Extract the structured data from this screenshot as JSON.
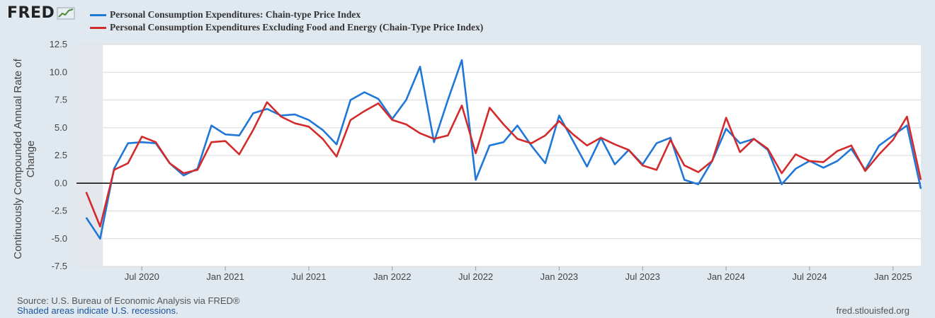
{
  "brand": {
    "logo_text": "FRED",
    "logo_graph_icon": "line-graph-icon"
  },
  "legend": [
    {
      "label": "Personal Consumption Expenditures: Chain-type Price Index",
      "color": "#1f77d8"
    },
    {
      "label": "Personal Consumption Expenditures Excluding Food and Energy (Chain-Type Price Index)",
      "color": "#d32b2b"
    }
  ],
  "footer": {
    "source": "Source: U.S. Bureau of Economic Analysis via FRED®",
    "recession_note": "Shaded areas indicate U.S. recessions.",
    "url": "fred.stlouisfed.org"
  },
  "chart_data": {
    "type": "line",
    "ylabel": "Continuously Compounded Annual Rate of Change",
    "ylim": [
      -7.5,
      12.5
    ],
    "y_ticks": [
      "12.5",
      "10.0",
      "7.5",
      "5.0",
      "2.5",
      "0.0",
      "-2.5",
      "-5.0",
      "-7.5"
    ],
    "x_ticks": [
      "Jul 2020",
      "Jan 2021",
      "Jul 2021",
      "Jan 2022",
      "Jul 2022",
      "Jan 2023",
      "Jul 2023",
      "Jan 2024",
      "Jul 2024",
      "Jan 2025"
    ],
    "x_start": "2020-03",
    "recession": {
      "start": "2020-03",
      "end": "2020-04"
    },
    "grid": true,
    "zero_line": true,
    "x": [
      "2020-03",
      "2020-04",
      "2020-05",
      "2020-06",
      "2020-07",
      "2020-08",
      "2020-09",
      "2020-10",
      "2020-11",
      "2020-12",
      "2021-01",
      "2021-02",
      "2021-03",
      "2021-04",
      "2021-05",
      "2021-06",
      "2021-07",
      "2021-08",
      "2021-09",
      "2021-10",
      "2021-11",
      "2021-12",
      "2022-01",
      "2022-02",
      "2022-03",
      "2022-04",
      "2022-05",
      "2022-06",
      "2022-07",
      "2022-08",
      "2022-09",
      "2022-10",
      "2022-11",
      "2022-12",
      "2023-01",
      "2023-02",
      "2023-03",
      "2023-04",
      "2023-05",
      "2023-06",
      "2023-07",
      "2023-08",
      "2023-09",
      "2023-10",
      "2023-11",
      "2023-12",
      "2024-01",
      "2024-02",
      "2024-03",
      "2024-04",
      "2024-05",
      "2024-06",
      "2024-07",
      "2024-08",
      "2024-09",
      "2024-10",
      "2024-11",
      "2024-12",
      "2025-01",
      "2025-02",
      "2025-03"
    ],
    "series": [
      {
        "name": "Personal Consumption Expenditures: Chain-type Price Index",
        "color": "#1f77d8",
        "values": [
          -3.1,
          -5.0,
          1.3,
          3.6,
          3.7,
          3.6,
          1.8,
          0.7,
          1.3,
          5.2,
          4.4,
          4.3,
          6.3,
          6.7,
          6.1,
          6.2,
          5.7,
          4.8,
          3.5,
          7.5,
          8.2,
          7.6,
          5.8,
          7.5,
          10.5,
          3.7,
          7.5,
          11.1,
          0.3,
          3.4,
          3.7,
          5.2,
          3.4,
          1.8,
          6.1,
          3.8,
          1.5,
          4.1,
          1.7,
          3.0,
          1.7,
          3.6,
          4.1,
          0.3,
          -0.1,
          2.0,
          4.9,
          3.6,
          4.0,
          3.0,
          -0.1,
          1.3,
          2.0,
          1.4,
          2.0,
          3.1,
          1.2,
          3.4,
          4.3,
          5.2,
          -0.5
        ]
      },
      {
        "name": "Personal Consumption Expenditures Excluding Food and Energy (Chain-Type Price Index)",
        "color": "#d32b2b",
        "values": [
          -0.8,
          -3.9,
          1.2,
          1.8,
          4.2,
          3.7,
          1.8,
          0.9,
          1.2,
          3.7,
          3.8,
          2.6,
          4.8,
          7.3,
          6.0,
          5.4,
          5.1,
          4.0,
          2.4,
          5.7,
          6.5,
          7.2,
          5.7,
          5.3,
          4.5,
          4.0,
          4.3,
          7.0,
          2.7,
          6.8,
          5.3,
          4.0,
          3.6,
          4.3,
          5.6,
          4.4,
          3.4,
          4.1,
          3.5,
          3.0,
          1.6,
          1.2,
          3.9,
          1.6,
          1.0,
          2.0,
          5.9,
          2.8,
          4.0,
          3.1,
          0.9,
          2.6,
          2.0,
          1.9,
          2.9,
          3.4,
          1.1,
          2.6,
          3.9,
          6.0,
          0.3
        ]
      }
    ]
  }
}
